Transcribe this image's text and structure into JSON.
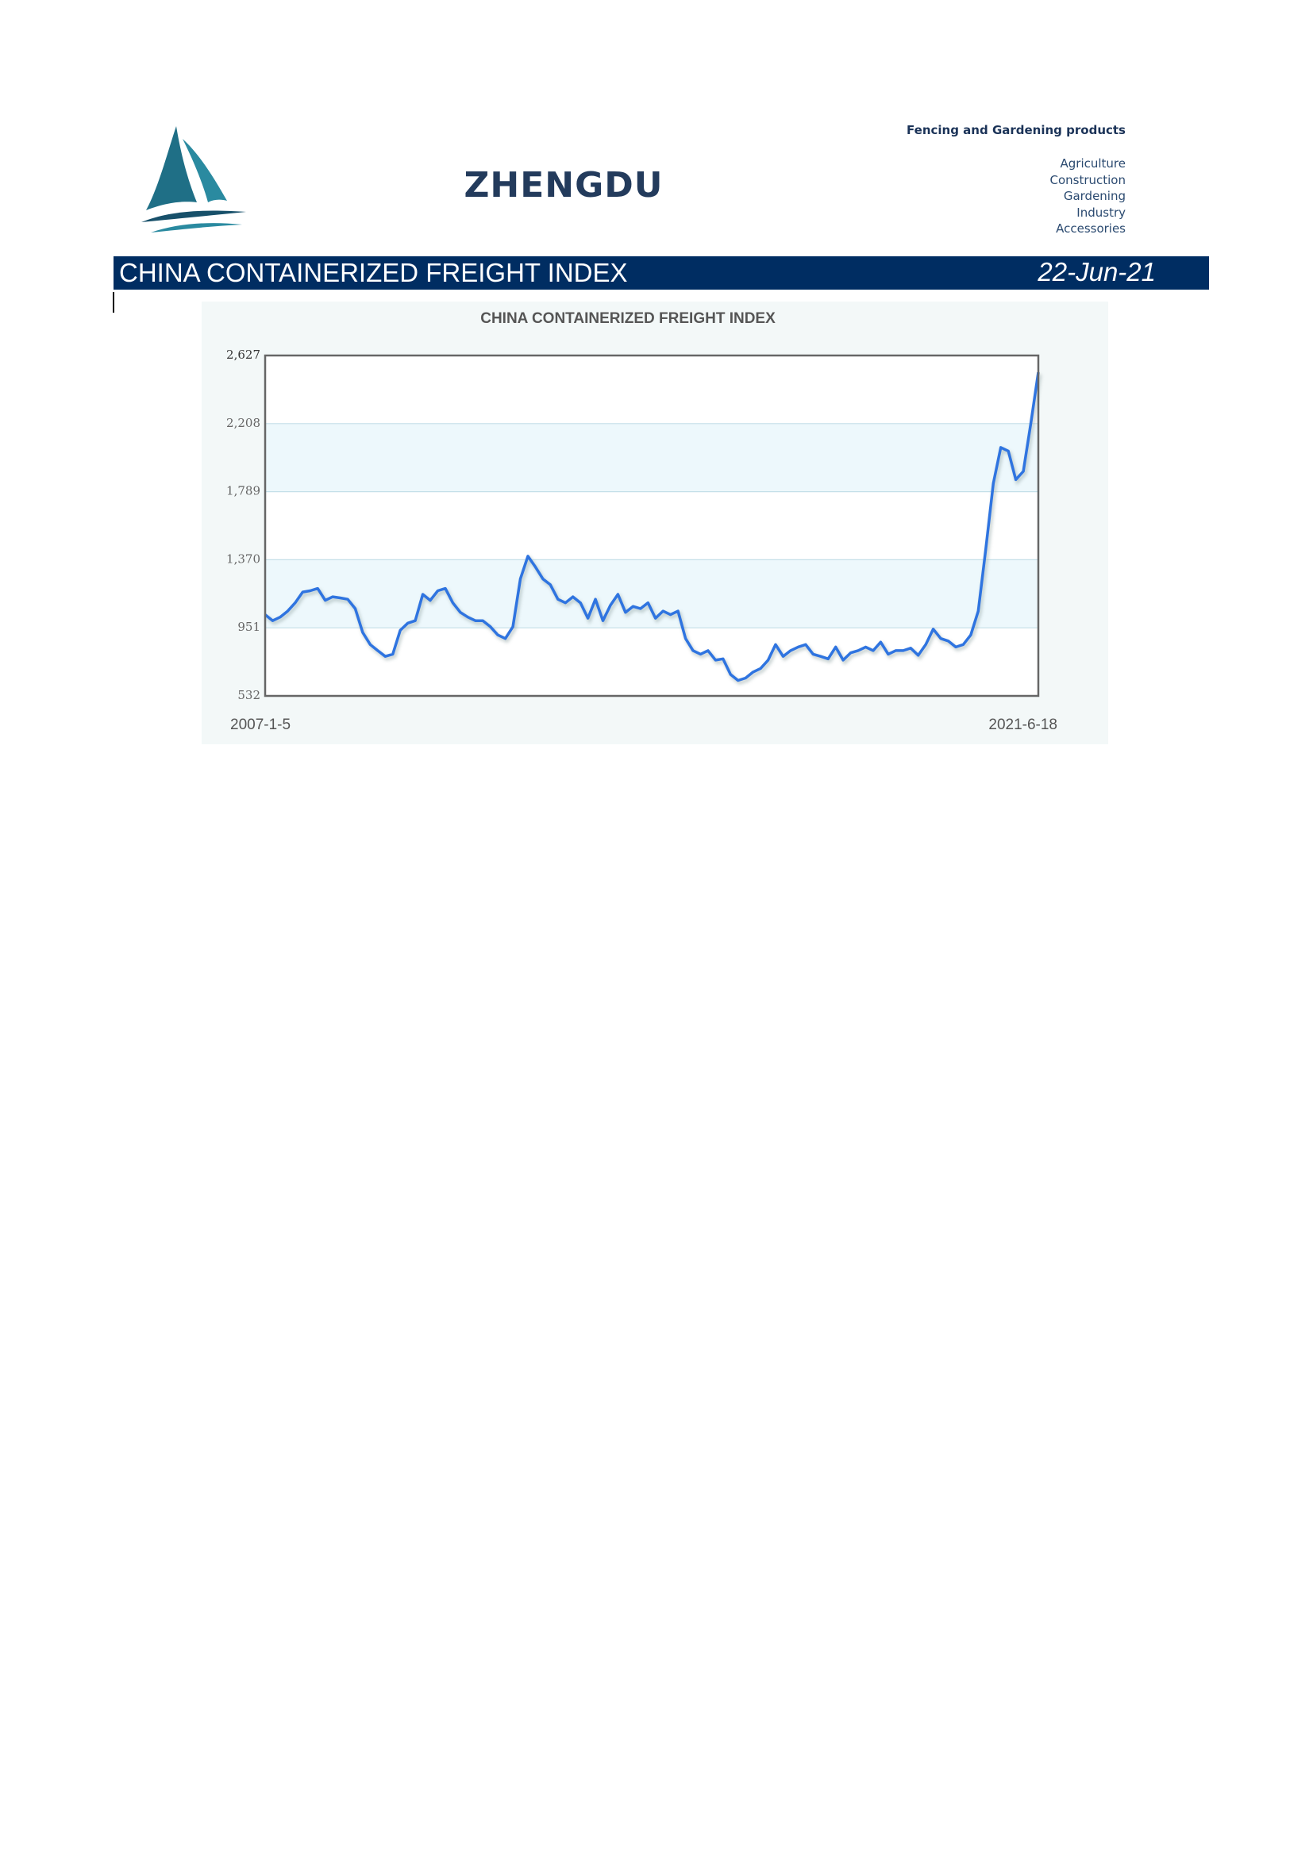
{
  "header": {
    "brand": "ZHENGDU",
    "tagline": "Fencing and Gardening products",
    "categories": [
      "Agriculture",
      "Construction",
      "Gardening",
      "Industry",
      "Accessories"
    ]
  },
  "banner": {
    "title": "CHINA CONTAINERIZED FREIGHT INDEX",
    "date": "22-Jun-21"
  },
  "chart_data": {
    "type": "line",
    "title": "CHINA CONTAINERIZED FREIGHT INDEX",
    "color": "#2f74e0",
    "categories": [
      "2007-1-5",
      null,
      null,
      null,
      null,
      null,
      null,
      null,
      null,
      null,
      null,
      null,
      null,
      null,
      null,
      null,
      null,
      null,
      null,
      null,
      null,
      null,
      null,
      null,
      null,
      null,
      null,
      null,
      null,
      null,
      null,
      null,
      null,
      null,
      null,
      null,
      null,
      null,
      null,
      null,
      null,
      null,
      null,
      null,
      null,
      null,
      null,
      null,
      null,
      null,
      null,
      null,
      null,
      null,
      null,
      null,
      null,
      null,
      null,
      null,
      null,
      null,
      null,
      null,
      null,
      null,
      null,
      null,
      null,
      null,
      null,
      null,
      null,
      null,
      null,
      null,
      null,
      null,
      null,
      null,
      null,
      null,
      null,
      null,
      null,
      null,
      null,
      null,
      null,
      null,
      null,
      null,
      null,
      null,
      null,
      null,
      null,
      null,
      null,
      null,
      null,
      null,
      null,
      "2021-6-18"
    ],
    "values": [
      1032,
      995,
      1017,
      1054,
      1105,
      1171,
      1179,
      1193,
      1120,
      1142,
      1135,
      1127,
      1069,
      922,
      848,
      811,
      775,
      789,
      936,
      980,
      995,
      1157,
      1120,
      1179,
      1193,
      1105,
      1046,
      1017,
      995,
      995,
      958,
      907,
      885,
      958,
      1252,
      1392,
      1326,
      1252,
      1216,
      1127,
      1105,
      1142,
      1105,
      1010,
      1127,
      995,
      1090,
      1157,
      1046,
      1083,
      1069,
      1105,
      1010,
      1054,
      1032,
      1054,
      885,
      811,
      789,
      811,
      752,
      760,
      664,
      627,
      642,
      679,
      701,
      752,
      848,
      775,
      811,
      833,
      848,
      789,
      775,
      760,
      833,
      752,
      797,
      811,
      833,
      811,
      863,
      789,
      811,
      811,
      826,
      782,
      848,
      943,
      885,
      870,
      833,
      848,
      907,
      1054,
      1436,
      1840,
      2061,
      2039,
      1863,
      1914,
      2208,
      2524
    ],
    "ylim": [
      532,
      2627
    ],
    "yticks": [
      532,
      951,
      {
        "value": 1370,
        "label": "1,370"
      },
      {
        "value": 1789,
        "label": "1,789"
      },
      {
        "value": 2208,
        "label": "2,208"
      },
      {
        "value": 2627,
        "label": "2,627"
      }
    ],
    "grid": true
  }
}
